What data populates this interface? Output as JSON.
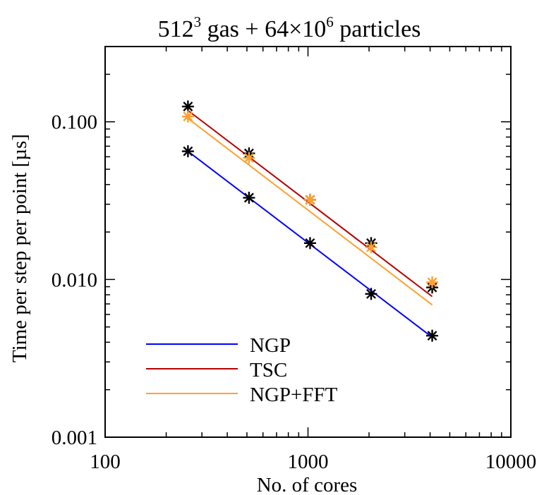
{
  "chart_data": {
    "type": "line",
    "title_base": "512",
    "title_sup1": "3",
    "title_mid": " gas + 64×10",
    "title_sup2": "6",
    "title_end": " particles",
    "xlabel": "No. of cores",
    "ylabel": "Time per step per point [µs]",
    "xscale": "log",
    "yscale": "log",
    "xlim": [
      100,
      10000
    ],
    "ylim": [
      0.001,
      0.3
    ],
    "xticks": [
      {
        "value": 100,
        "label": "100"
      },
      {
        "value": 1000,
        "label": "1000"
      },
      {
        "value": 10000,
        "label": "10000"
      }
    ],
    "yticks": [
      {
        "value": 0.001,
        "label": "0.001"
      },
      {
        "value": 0.01,
        "label": "0.010"
      },
      {
        "value": 0.1,
        "label": "0.100"
      }
    ],
    "legend_position": "bottom-left",
    "series": [
      {
        "name": "NGP",
        "color": "#0000ff",
        "marker_color": "#000000",
        "x": [
          256,
          512,
          1024,
          2048,
          4096
        ],
        "points": [
          0.065,
          0.033,
          0.017,
          0.0081,
          0.0044
        ],
        "fit": [
          0.065,
          0.0043
        ]
      },
      {
        "name": "TSC",
        "color": "#b40000",
        "marker_color": "#000000",
        "x": [
          256,
          512,
          1024,
          2048,
          4096
        ],
        "points": [
          0.125,
          0.063,
          0.032,
          0.017,
          0.0089
        ],
        "fit": [
          0.118,
          0.0078
        ]
      },
      {
        "name": "NGP+FFT",
        "color": "#ffa030",
        "marker_color": "#ffa030",
        "x": [
          256,
          512,
          1024,
          2048,
          4096
        ],
        "points": [
          0.108,
          0.059,
          0.032,
          0.016,
          0.0096
        ],
        "fit": [
          0.105,
          0.0069
        ]
      }
    ]
  }
}
